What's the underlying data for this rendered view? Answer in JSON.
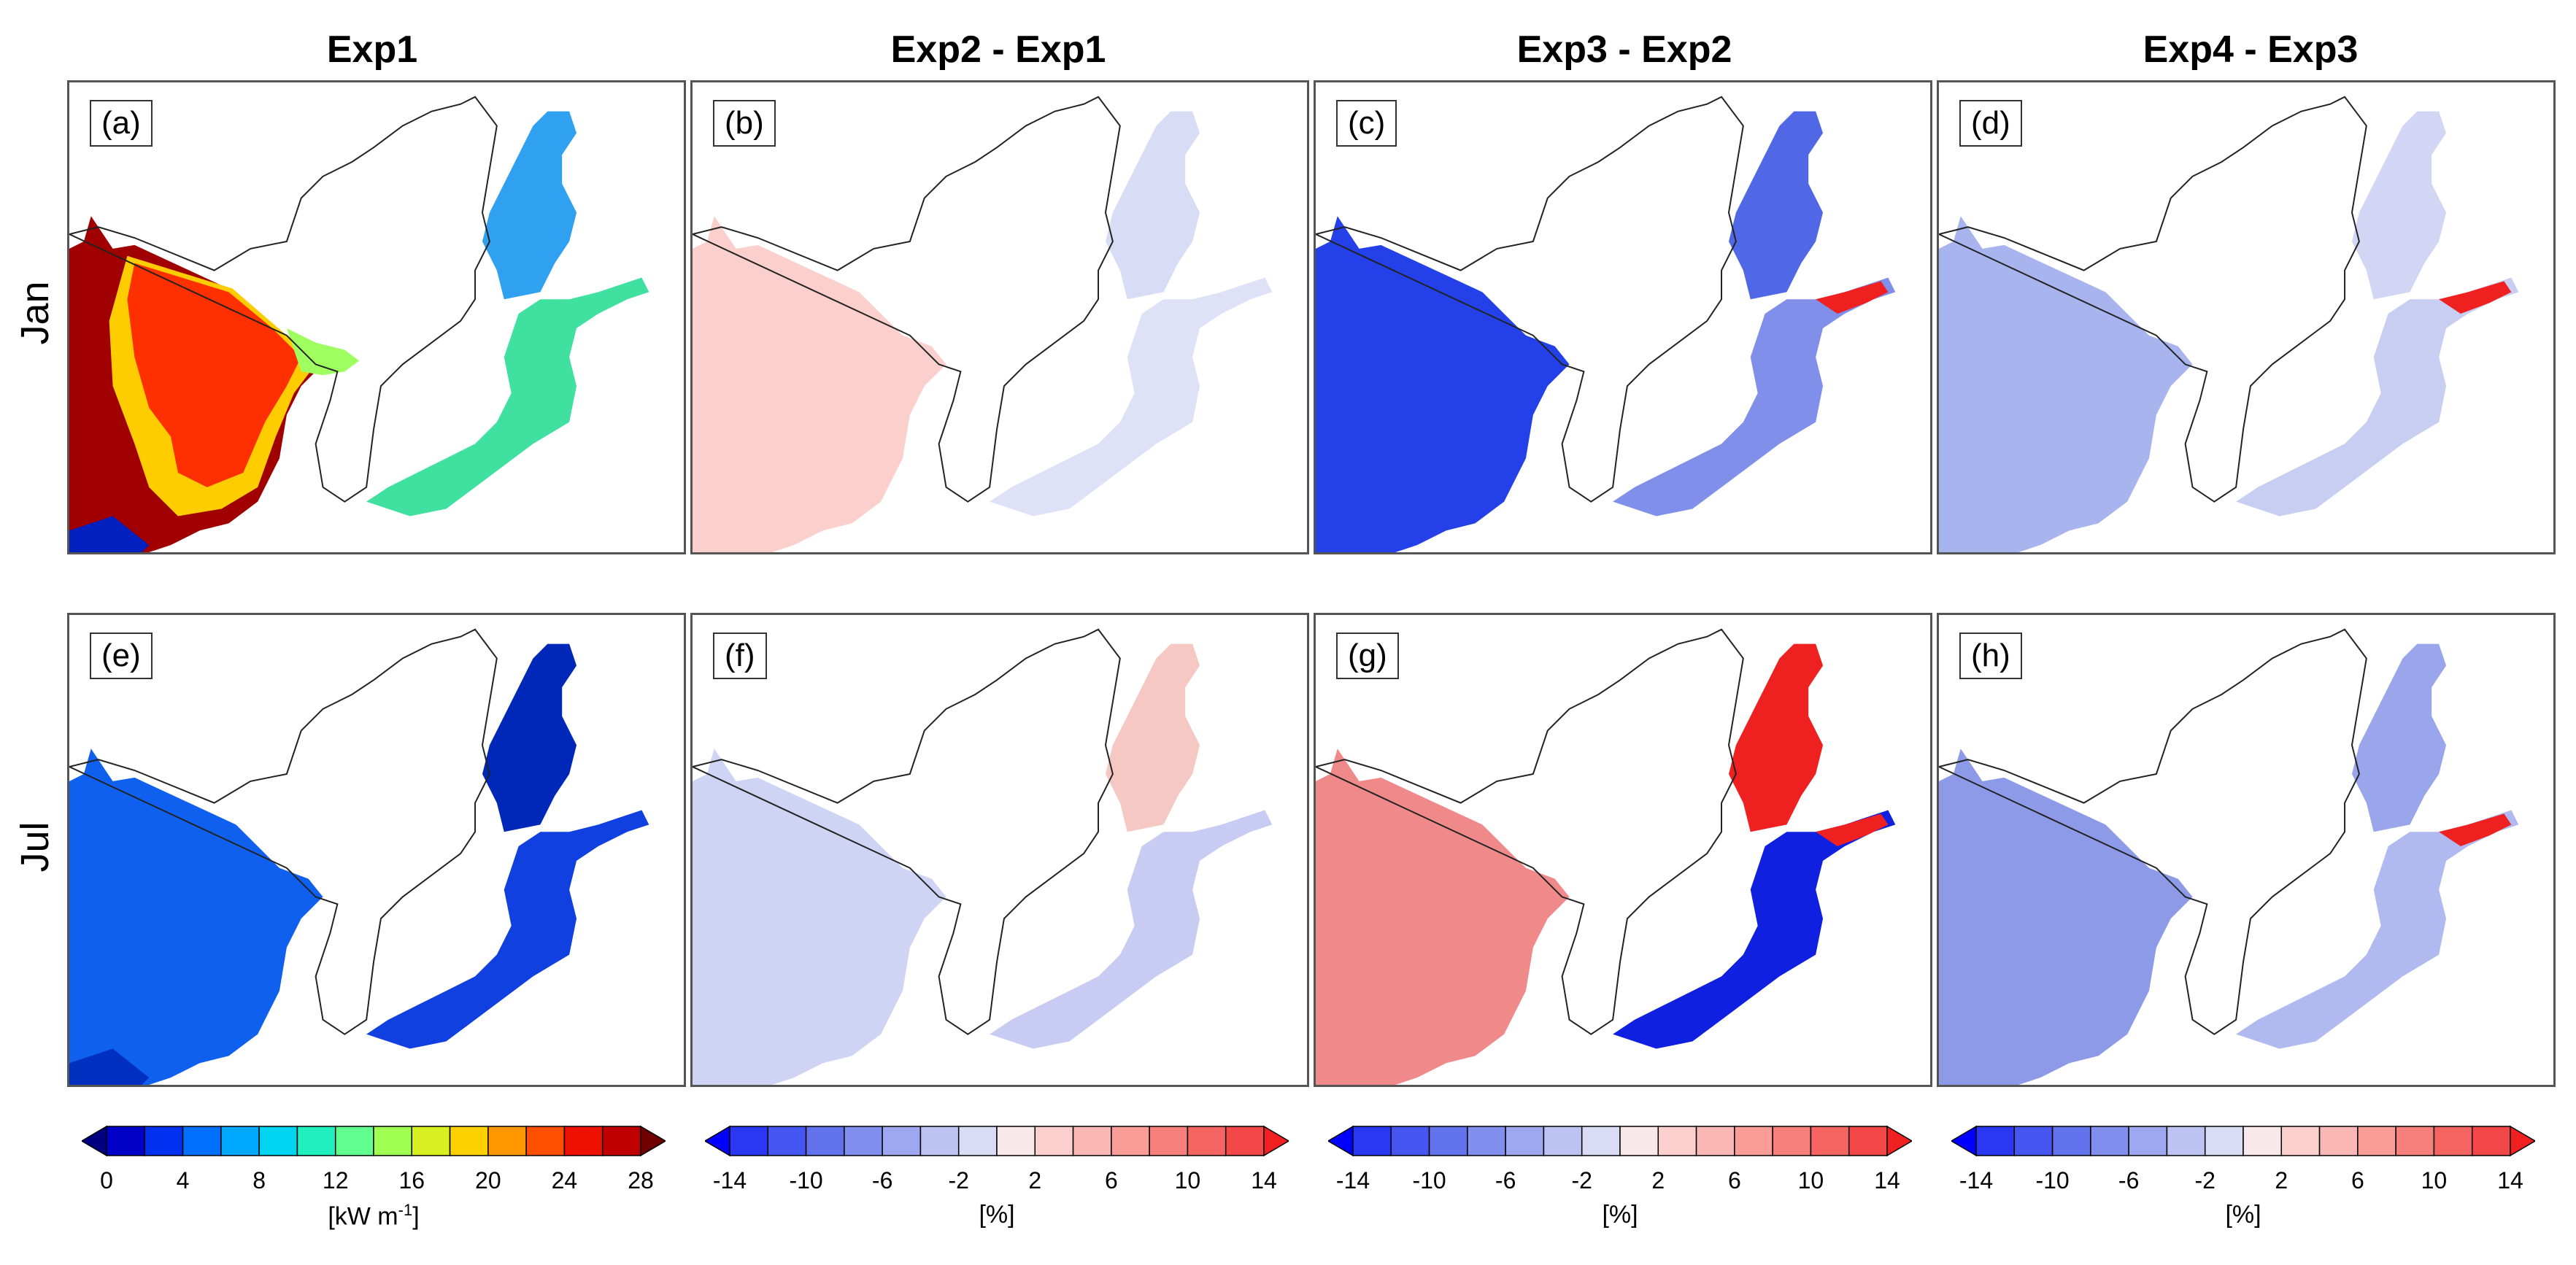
{
  "columns": [
    "Exp1",
    "Exp2 - Exp1",
    "Exp3 - Exp2",
    "Exp4 - Exp3"
  ],
  "rows": [
    "Jan",
    "Jul"
  ],
  "panels": [
    "(a)",
    "(b)",
    "(c)",
    "(d)",
    "(e)",
    "(f)",
    "(g)",
    "(h)"
  ],
  "panel_fills": {
    "a": {
      "north_sea": "#a00000",
      "north_sea_mid": "#ff3000",
      "north_sea_edge": "#ffcc00",
      "skagerrak": "#a0ff60",
      "baltic": "#40e0a0",
      "bothnia": "#30a0f0",
      "coast": "#0020c0"
    },
    "b": {
      "north_sea": "#fbd0cc",
      "baltic": "#dfe2f6",
      "bothnia": "#d8dcf4"
    },
    "c": {
      "north_sea": "#2440e8",
      "baltic": "#8090ea",
      "bothnia": "#5068e6",
      "highlight": "#ee2020"
    },
    "d": {
      "north_sea": "#a8b4ee",
      "baltic": "#c8cef2",
      "bothnia": "#d2d6f4",
      "highlight": "#ee2020"
    },
    "e": {
      "north_sea": "#1060f0",
      "baltic": "#1040e0",
      "bothnia": "#0028b8",
      "coast": "#0030c0"
    },
    "f": {
      "north_sea": "#d0d4f4",
      "baltic": "#c8ccf2",
      "bothnia": "#f6c8c4"
    },
    "g": {
      "north_sea": "#f08a8a",
      "baltic": "#1020e0",
      "bothnia": "#ee2020",
      "highlight": "#ee2020"
    },
    "h": {
      "north_sea": "#8c9ae8",
      "baltic": "#b0baf0",
      "bothnia": "#9aa6ec",
      "highlight": "#ee2020"
    }
  },
  "colorbars": [
    {
      "colors": [
        "#000080",
        "#0000c8",
        "#0030f0",
        "#0070ff",
        "#00a8ff",
        "#00d4f0",
        "#20f0c0",
        "#60ff90",
        "#a0ff50",
        "#d8f020",
        "#ffd000",
        "#ff9800",
        "#ff5000",
        "#ee1000",
        "#c00000",
        "#700000"
      ],
      "ticks": [
        "0",
        "4",
        "8",
        "12",
        "16",
        "20",
        "24",
        "28"
      ],
      "unit": "[kW m",
      "unit_sup": "-1",
      "unit_close": "]"
    },
    {
      "colors": [
        "#0000ff",
        "#2a38f4",
        "#4656f0",
        "#6272ec",
        "#808eee",
        "#9ea8f0",
        "#bcc2f2",
        "#dadcf6",
        "#f8e8ea",
        "#fcd0cc",
        "#fcb8b4",
        "#fa9c98",
        "#f8807c",
        "#f66462",
        "#f44848",
        "#f02020"
      ],
      "ticks": [
        "-14",
        "-10",
        "-6",
        "-2",
        "2",
        "6",
        "10",
        "14"
      ],
      "unit": "[%]"
    },
    {
      "colors": [
        "#0000ff",
        "#2a38f4",
        "#4656f0",
        "#6272ec",
        "#808eee",
        "#9ea8f0",
        "#bcc2f2",
        "#dadcf6",
        "#f8e8ea",
        "#fcd0cc",
        "#fcb8b4",
        "#fa9c98",
        "#f8807c",
        "#f66462",
        "#f44848",
        "#f02020"
      ],
      "ticks": [
        "-14",
        "-10",
        "-6",
        "-2",
        "2",
        "6",
        "10",
        "14"
      ],
      "unit": "[%]"
    },
    {
      "colors": [
        "#0000ff",
        "#2a38f4",
        "#4656f0",
        "#6272ec",
        "#808eee",
        "#9ea8f0",
        "#bcc2f2",
        "#dadcf6",
        "#f8e8ea",
        "#fcd0cc",
        "#fcb8b4",
        "#fa9c98",
        "#f8807c",
        "#f66462",
        "#f44848",
        "#f02020"
      ],
      "ticks": [
        "-14",
        "-10",
        "-6",
        "-2",
        "2",
        "6",
        "10",
        "14"
      ],
      "unit": "[%]"
    }
  ]
}
